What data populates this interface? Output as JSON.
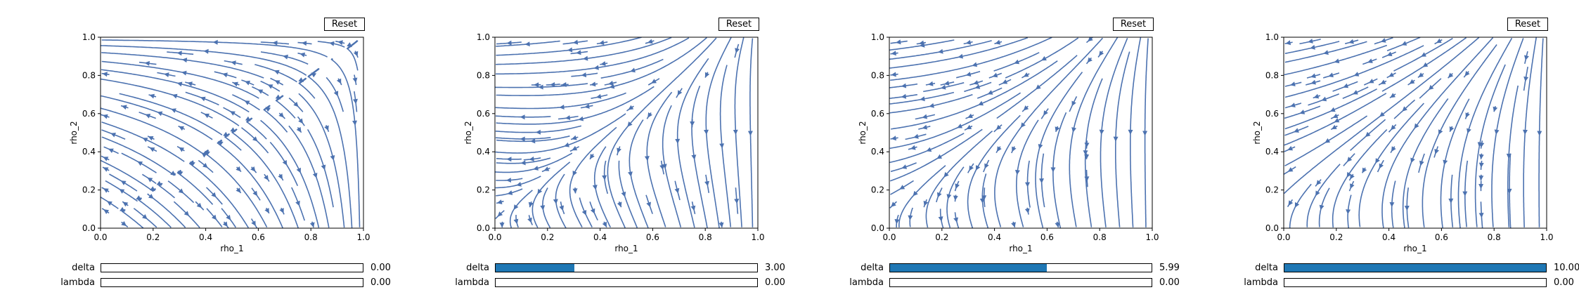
{
  "chart_data": [
    {
      "type": "streamplot",
      "xlabel": "rho_1",
      "ylabel": "rho_2",
      "xlim": [
        0.0,
        1.0
      ],
      "ylim": [
        0.0,
        1.0
      ],
      "x_ticks": [
        "0.0",
        "0.2",
        "0.4",
        "0.6",
        "0.8",
        "1.0"
      ],
      "y_ticks": [
        "0.0",
        "0.2",
        "0.4",
        "0.6",
        "0.8",
        "1.0"
      ],
      "stream_color": "#4c72b0",
      "params": {
        "delta": 0.0,
        "lambda": 0.0
      },
      "reset_label": "Reset",
      "sliders": [
        {
          "name": "delta",
          "value": 0.0,
          "display": "0.00",
          "min": 0,
          "max": 10
        },
        {
          "name": "lambda",
          "value": 0.0,
          "display": "0.00",
          "min": 0,
          "max": 10
        }
      ]
    },
    {
      "type": "streamplot",
      "xlabel": "rho_1",
      "ylabel": "rho_2",
      "xlim": [
        0.0,
        1.0
      ],
      "ylim": [
        0.0,
        1.0
      ],
      "x_ticks": [
        "0.0",
        "0.2",
        "0.4",
        "0.6",
        "0.8",
        "1.0"
      ],
      "y_ticks": [
        "0.0",
        "0.2",
        "0.4",
        "0.6",
        "0.8",
        "1.0"
      ],
      "stream_color": "#4c72b0",
      "params": {
        "delta": 3.0,
        "lambda": 0.0
      },
      "reset_label": "Reset",
      "sliders": [
        {
          "name": "delta",
          "value": 3.0,
          "display": "3.00",
          "min": 0,
          "max": 10
        },
        {
          "name": "lambda",
          "value": 0.0,
          "display": "0.00",
          "min": 0,
          "max": 10
        }
      ]
    },
    {
      "type": "streamplot",
      "xlabel": "rho_1",
      "ylabel": "rho_2",
      "xlim": [
        0.0,
        1.0
      ],
      "ylim": [
        0.0,
        1.0
      ],
      "x_ticks": [
        "0.0",
        "0.2",
        "0.4",
        "0.6",
        "0.8",
        "1.0"
      ],
      "y_ticks": [
        "0.0",
        "0.2",
        "0.4",
        "0.6",
        "0.8",
        "1.0"
      ],
      "stream_color": "#4c72b0",
      "params": {
        "delta": 5.99,
        "lambda": 0.0
      },
      "reset_label": "Reset",
      "sliders": [
        {
          "name": "delta",
          "value": 5.99,
          "display": "5.99",
          "min": 0,
          "max": 10
        },
        {
          "name": "lambda",
          "value": 0.0,
          "display": "0.00",
          "min": 0,
          "max": 10
        }
      ]
    },
    {
      "type": "streamplot",
      "xlabel": "rho_1",
      "ylabel": "rho_2",
      "xlim": [
        0.0,
        1.0
      ],
      "ylim": [
        0.0,
        1.0
      ],
      "x_ticks": [
        "0.0",
        "0.2",
        "0.4",
        "0.6",
        "0.8",
        "1.0"
      ],
      "y_ticks": [
        "0.0",
        "0.2",
        "0.4",
        "0.6",
        "0.8",
        "1.0"
      ],
      "stream_color": "#4c72b0",
      "params": {
        "delta": 10.0,
        "lambda": 0.0
      },
      "reset_label": "Reset",
      "sliders": [
        {
          "name": "delta",
          "value": 10.0,
          "display": "10.00",
          "min": 0,
          "max": 10
        },
        {
          "name": "lambda",
          "value": 0.0,
          "display": "0.00",
          "min": 0,
          "max": 10
        }
      ]
    }
  ],
  "colors": {
    "slider_fill": "#1f77b4",
    "stream": "#4c72b0",
    "frame": "#000000"
  }
}
